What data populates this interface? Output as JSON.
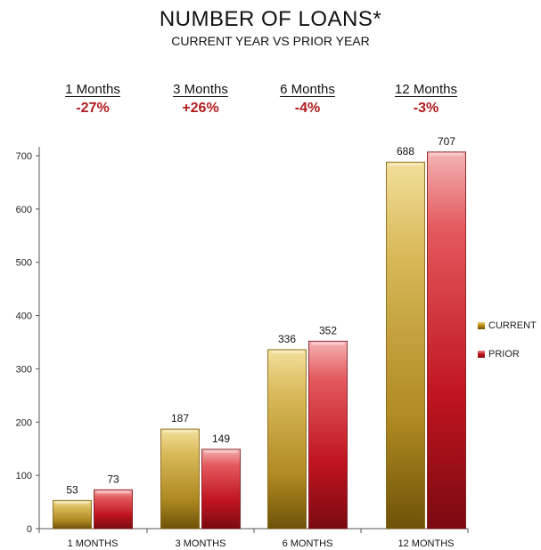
{
  "title": "NUMBER OF LOANS*",
  "subtitle": "CURRENT YEAR VS PRIOR YEAR",
  "comparisons": [
    {
      "label": "1 Months",
      "change": "-27%"
    },
    {
      "label": "3 Months",
      "change": "+26%"
    },
    {
      "label": "6 Months",
      "change": "-4%"
    },
    {
      "label": "12 Months",
      "change": "-3%"
    }
  ],
  "colors": {
    "current": "#b8860b",
    "prior": "#c0141f",
    "change_text": "#b01c1c"
  },
  "chart_data": {
    "type": "bar",
    "categories": [
      "1 MONTHS",
      "3 MONTHS",
      "6 MONTHS",
      "12 MONTHS"
    ],
    "series": [
      {
        "name": "CURRENT",
        "values": [
          53,
          187,
          336,
          688
        ]
      },
      {
        "name": "PRIOR",
        "values": [
          73,
          149,
          352,
          707
        ]
      }
    ],
    "ylim": [
      0,
      700
    ],
    "yticks": [
      0,
      100,
      200,
      300,
      400,
      500,
      600,
      700
    ],
    "legend": "right",
    "grid": false,
    "data_labels": true
  }
}
